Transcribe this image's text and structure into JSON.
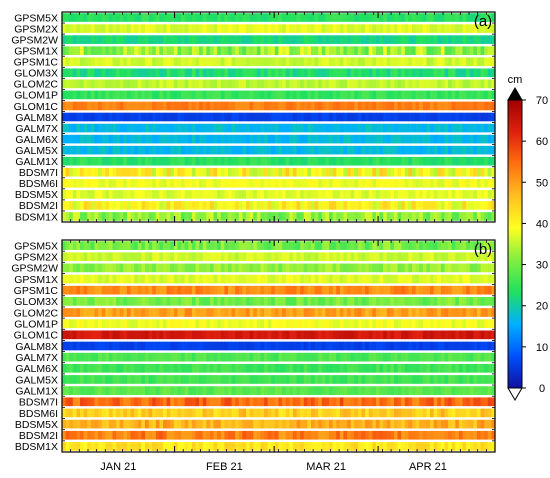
{
  "chart_data": {
    "type": "heatmap",
    "x_axis": {
      "tick_labels": [
        "JAN 21",
        "FEB 21",
        "MAR 21",
        "APR 21"
      ]
    },
    "colorbar": {
      "unit": "cm",
      "range": [
        0,
        70
      ],
      "ticks": [
        0,
        10,
        20,
        30,
        40,
        50,
        60,
        70
      ],
      "colors": [
        "#1010a0",
        "#0050ff",
        "#00b0ff",
        "#20e060",
        "#80ee40",
        "#ffff20",
        "#ffc020",
        "#ff7010",
        "#e02010",
        "#a00000"
      ],
      "extend": "both"
    },
    "panels": [
      {
        "tag": "(a)",
        "rows": [
          {
            "label": "GPSM5X",
            "mean": 24,
            "var": 2
          },
          {
            "label": "GPSM2X",
            "mean": 37,
            "var": 2
          },
          {
            "label": "GPSM2W",
            "mean": 22,
            "var": 2
          },
          {
            "label": "GPSM1X",
            "mean": 33,
            "var": 6
          },
          {
            "label": "GPSM1C",
            "mean": 36,
            "var": 2
          },
          {
            "label": "GLOM3X",
            "mean": 23,
            "var": 3
          },
          {
            "label": "GLOM2C",
            "mean": 35,
            "var": 2
          },
          {
            "label": "GLOM1P",
            "mean": 25,
            "var": 2
          },
          {
            "label": "GLOM1C",
            "mean": 53,
            "var": 2
          },
          {
            "label": "GALM8X",
            "mean": 6,
            "var": 1
          },
          {
            "label": "GALM7X",
            "mean": 17,
            "var": 2
          },
          {
            "label": "GALM6X",
            "mean": 17,
            "var": 2
          },
          {
            "label": "GALM5X",
            "mean": 17,
            "var": 2
          },
          {
            "label": "GALM1X",
            "mean": 24,
            "var": 2
          },
          {
            "label": "BDSM7I",
            "mean": 40,
            "var": 6
          },
          {
            "label": "BDSM6I",
            "mean": 38,
            "var": 2
          },
          {
            "label": "BDSM5X",
            "mean": 37,
            "var": 2
          },
          {
            "label": "BDSM2I",
            "mean": 40,
            "var": 5
          },
          {
            "label": "BDSM1X",
            "mean": 32,
            "var": 5
          }
        ]
      },
      {
        "tag": "(b)",
        "rows": [
          {
            "label": "GPSM5X",
            "mean": 30,
            "var": 4
          },
          {
            "label": "GPSM2X",
            "mean": 36,
            "var": 2
          },
          {
            "label": "GPSM2W",
            "mean": 32,
            "var": 3
          },
          {
            "label": "GPSM1X",
            "mean": 37,
            "var": 2
          },
          {
            "label": "GPSM1C",
            "mean": 52,
            "var": 3
          },
          {
            "label": "GLOM3X",
            "mean": 30,
            "var": 3
          },
          {
            "label": "GLOM2C",
            "mean": 50,
            "var": 3
          },
          {
            "label": "GLOM1P",
            "mean": 38,
            "var": 2
          },
          {
            "label": "GLOM1C",
            "mean": 64,
            "var": 2
          },
          {
            "label": "GALM8X",
            "mean": 6,
            "var": 1
          },
          {
            "label": "GALM7X",
            "mean": 27,
            "var": 2
          },
          {
            "label": "GALM6X",
            "mean": 26,
            "var": 2
          },
          {
            "label": "GALM5X",
            "mean": 26,
            "var": 2
          },
          {
            "label": "GALM1X",
            "mean": 28,
            "var": 2
          },
          {
            "label": "BDSM7I",
            "mean": 55,
            "var": 4
          },
          {
            "label": "BDSM6I",
            "mean": 45,
            "var": 4
          },
          {
            "label": "BDSM5X",
            "mean": 48,
            "var": 4
          },
          {
            "label": "BDSM2I",
            "mean": 53,
            "var": 4
          },
          {
            "label": "BDSM1X",
            "mean": 42,
            "var": 3
          }
        ]
      }
    ]
  }
}
